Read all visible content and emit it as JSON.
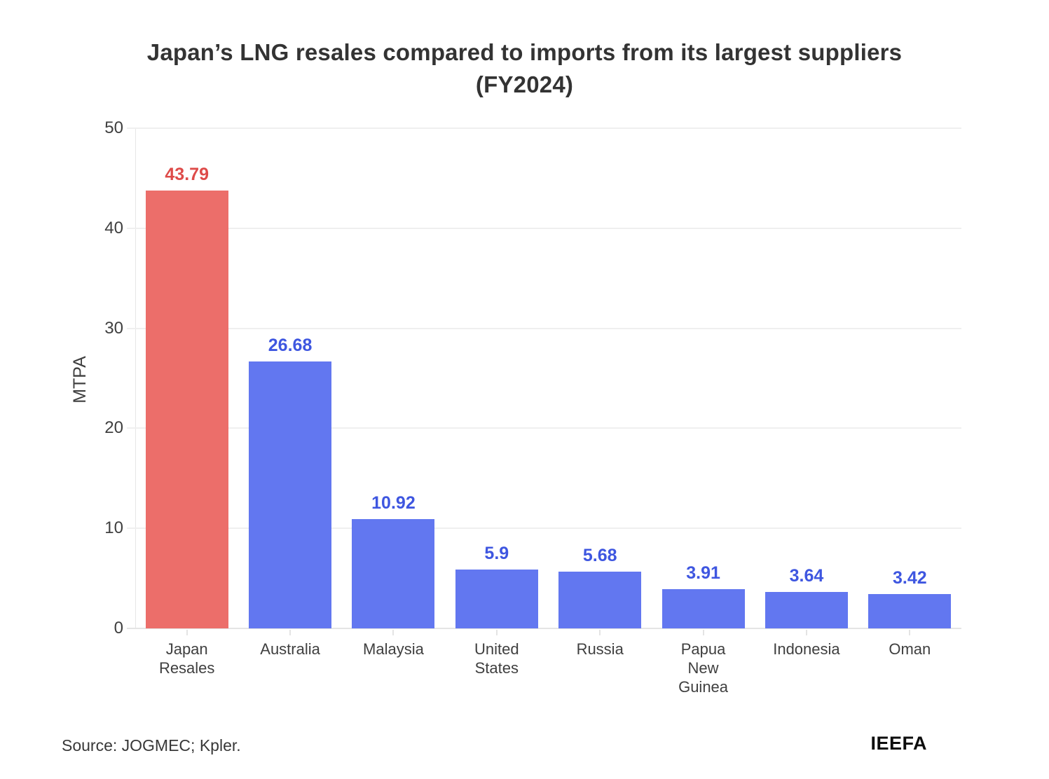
{
  "header": {
    "title_line1": "Japan’s LNG resales compared to imports from its largest suppliers",
    "title_line2": "(FY2024)"
  },
  "chart_data": {
    "type": "bar",
    "title": "Japan’s LNG resales compared to imports from its largest suppliers (FY2024)",
    "xlabel": "",
    "ylabel": "MTPA",
    "ylim": [
      0,
      50
    ],
    "yticks": [
      0,
      10,
      20,
      30,
      40,
      50
    ],
    "grid": true,
    "legend": "none",
    "categories": [
      "Japan Resales",
      "Australia",
      "Malaysia",
      "United States",
      "Russia",
      "Papua New Guinea",
      "Indonesia",
      "Oman"
    ],
    "category_label_lines": [
      [
        "Japan",
        "Resales"
      ],
      [
        "Australia"
      ],
      [
        "Malaysia"
      ],
      [
        "United",
        "States"
      ],
      [
        "Russia"
      ],
      [
        "Papua",
        "New",
        "Guinea"
      ],
      [
        "Indonesia"
      ],
      [
        "Oman"
      ]
    ],
    "values": [
      43.79,
      26.68,
      10.92,
      5.9,
      5.68,
      3.91,
      3.64,
      3.42
    ],
    "value_labels": [
      "43.79",
      "26.68",
      "10.92",
      "5.9",
      "5.68",
      "3.91",
      "3.64",
      "3.42"
    ],
    "bar_colors": [
      "#EC6E6A",
      "#6277F0",
      "#6277F0",
      "#6277F0",
      "#6277F0",
      "#6277F0",
      "#6277F0",
      "#6277F0"
    ],
    "value_label_colors": [
      "#DE4B49",
      "#3E56E0",
      "#3E56E0",
      "#3E56E0",
      "#3E56E0",
      "#3E56E0",
      "#3E56E0",
      "#3E56E0"
    ],
    "colors": {
      "highlight_bar": "#EC6E6A",
      "default_bar": "#6277F0",
      "highlight_value_label": "#DE4B49",
      "default_value_label": "#3E56E0",
      "grid": "#efefef",
      "axis": "#e4e4e4",
      "text": "#3f3f3f",
      "title": "#333333"
    }
  },
  "footer": {
    "source": "Source: JOGMEC; Kpler.",
    "logo": "IEEFA"
  }
}
